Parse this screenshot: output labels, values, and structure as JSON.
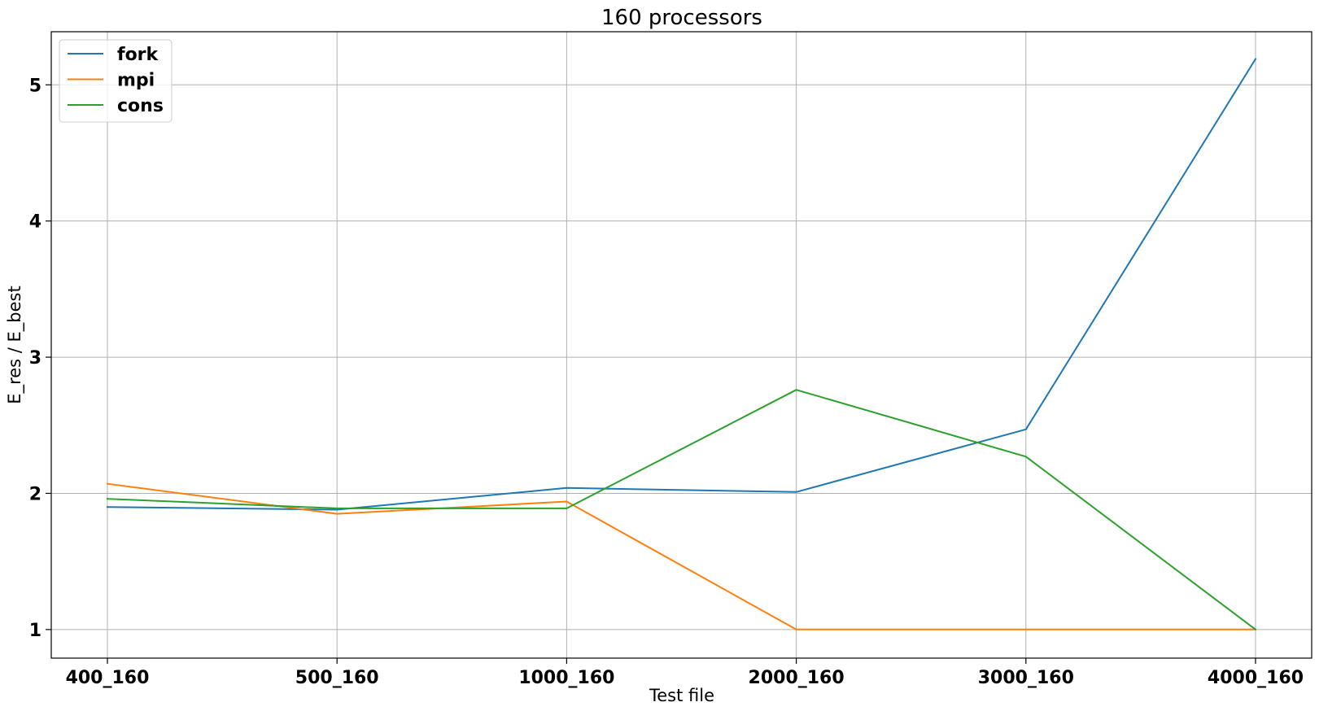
{
  "chart_data": {
    "type": "line",
    "title": "160 processors",
    "xlabel": "Test file",
    "ylabel": "E_res / E_best",
    "categories": [
      "400_160",
      "500_160",
      "1000_160",
      "2000_160",
      "3000_160",
      "4000_160"
    ],
    "yticks": [
      "1",
      "2",
      "3",
      "4",
      "5"
    ],
    "ylim": [
      0.79,
      5.39
    ],
    "grid": true,
    "legend_position": "upper-left",
    "series": [
      {
        "name": "fork",
        "color": "#1f77b4",
        "values": [
          1.9,
          1.88,
          2.04,
          2.01,
          2.47,
          5.19
        ]
      },
      {
        "name": "mpi",
        "color": "#ff7f0e",
        "values": [
          2.07,
          1.85,
          1.94,
          1.0,
          1.0,
          1.0
        ]
      },
      {
        "name": "cons",
        "color": "#2ca02c",
        "values": [
          1.96,
          1.89,
          1.89,
          2.76,
          2.27,
          1.0
        ]
      }
    ]
  }
}
